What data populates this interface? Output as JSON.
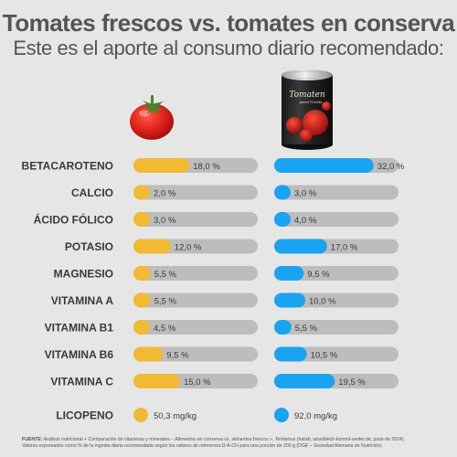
{
  "title": "Tomates frescos vs. tomates en conserva",
  "subtitle": "Este es el aporte al consumo diario recomendado:",
  "can_label": {
    "brand": "Tomaten",
    "sub": "ganze Früchte"
  },
  "colors": {
    "fresh": "#f2b933",
    "canned": "#1aa3f0",
    "track": "#bdbdbd",
    "background": "#e6e6e6"
  },
  "chart_data": {
    "type": "bar",
    "categories": [
      "BETACAROTENO",
      "CALCIO",
      "ÁCIDO FÓLICO",
      "POTASIO",
      "MAGNESIO",
      "VITAMINA A",
      "VITAMINA B1",
      "VITAMINA B6",
      "VITAMINA C"
    ],
    "series": [
      {
        "values": [
          18.0,
          2.0,
          3.0,
          12.0,
          5.5,
          5.5,
          4.5,
          9.5,
          15.0
        ],
        "labels": [
          "18,0 %",
          "2,0 %",
          "3,0 %",
          "12,0 %",
          "5,5 %",
          "5,5 %",
          "4,5 %",
          "9,5 %",
          "15,0 %"
        ]
      },
      {
        "values": [
          32.0,
          3.0,
          4.0,
          17.0,
          9.5,
          10.0,
          5.5,
          10.5,
          19.5
        ],
        "labels": [
          "32,0 %",
          "3,0 %",
          "4,0 %",
          "17,0 %",
          "9,5 %",
          "10,0 %",
          "5,5 %",
          "10,5 %",
          "19,5 %"
        ]
      }
    ],
    "ylim": [
      0,
      40
    ],
    "extra_row": {
      "label": "LICOPENO",
      "values": [
        50.3,
        92.0
      ],
      "labels": [
        "50,3 mg/kg",
        "92,0 mg/kg"
      ]
    }
  },
  "footnote": {
    "bold": "FUENTE:",
    "line1": " Análisis nutricional + Comparación de vitaminas y minerales – Alimentos en conserva vs. alimentos frescos », Tentamus (hatab, wissiblech-kommt-weiter.de, junio de 2024).",
    "line2": "Valores expresados como % de la ingesta diaria recomendada según los valores de referencia D-A-CH para una porción de 200 g (DGE – Sociedad Alemana de Nutrición)."
  }
}
